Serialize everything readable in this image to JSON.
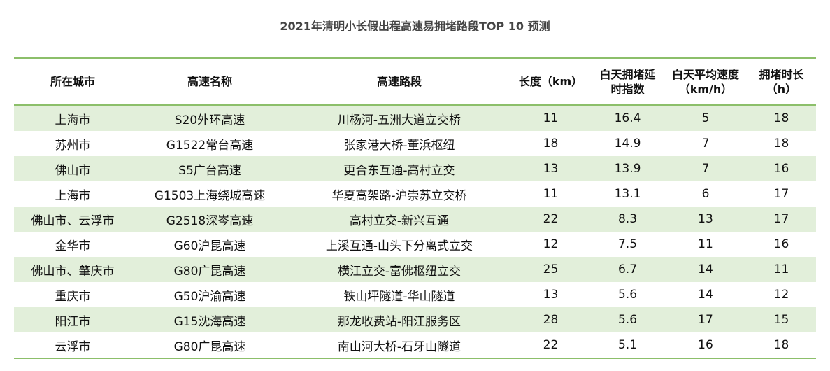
{
  "title": "2021年清明小长假出程高速易拥堵路段TOP 10 预测",
  "colors": {
    "row_stripe": "#e2efda",
    "rule": "#8cbf6a"
  },
  "columns": [
    "所在城市",
    "高速名称",
    "高速路段",
    "长度（km）",
    "白天拥堵延时指数",
    "白天平均速度（km/h）",
    "拥堵时长（h）"
  ],
  "rows": [
    [
      "上海市",
      "S20外环高速",
      "川杨河-五洲大道立交桥",
      "11",
      "16.4",
      "5",
      "18"
    ],
    [
      "苏州市",
      "G1522常台高速",
      "张家港大桥-董浜枢纽",
      "18",
      "14.9",
      "7",
      "18"
    ],
    [
      "佛山市",
      "S5广台高速",
      "更合东互通-高村立交",
      "13",
      "13.9",
      "7",
      "16"
    ],
    [
      "上海市",
      "G1503上海绕城高速",
      "华夏高架路-沪崇苏立交桥",
      "11",
      "13.1",
      "6",
      "17"
    ],
    [
      "佛山市、云浮市",
      "G2518深岑高速",
      "高村立交-新兴互通",
      "22",
      "8.3",
      "13",
      "17"
    ],
    [
      "金华市",
      "G60沪昆高速",
      "上溪互通-山头下分离式立交",
      "12",
      "7.5",
      "11",
      "16"
    ],
    [
      "佛山市、肇庆市",
      "G80广昆高速",
      "横江立交-富佛枢纽立交",
      "25",
      "6.7",
      "14",
      "11"
    ],
    [
      "重庆市",
      "G50沪渝高速",
      "铁山坪隧道-华山隧道",
      "13",
      "5.6",
      "14",
      "12"
    ],
    [
      "阳江市",
      "G15沈海高速",
      "那龙收费站-阳江服务区",
      "28",
      "5.6",
      "17",
      "15"
    ],
    [
      "云浮市",
      "G80广昆高速",
      "南山河大桥-石牙山隧道",
      "22",
      "5.1",
      "16",
      "18"
    ]
  ]
}
